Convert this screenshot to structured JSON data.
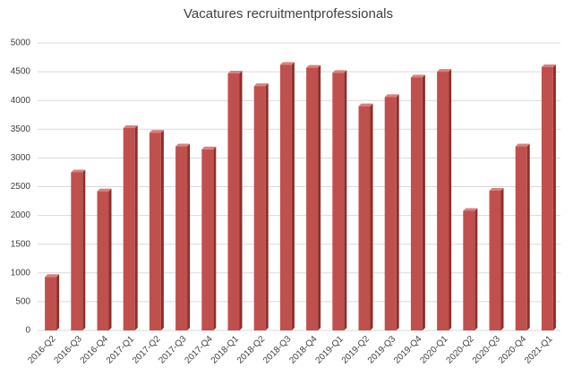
{
  "chart_data": {
    "type": "bar",
    "title": "Vacatures recruitmentprofessionals",
    "categories": [
      "2016-Q2",
      "2016-Q3",
      "2016-Q4",
      "2017-Q1",
      "2017-Q2",
      "2017-Q3",
      "2017-Q4",
      "2018-Q1",
      "2018-Q2",
      "2018-Q3",
      "2018-Q4",
      "2019-Q1",
      "2019-Q2",
      "2019-Q3",
      "2019-Q4",
      "2020-Q1",
      "2020-Q2",
      "2020-Q3",
      "2020-Q4",
      "2021-Q1"
    ],
    "values": [
      930,
      2750,
      2420,
      3520,
      3440,
      3200,
      3150,
      4470,
      4250,
      4620,
      4570,
      4480,
      3900,
      4060,
      4400,
      4500,
      2080,
      2430,
      3200,
      4580
    ],
    "color": "#c0504d",
    "ylim": [
      0,
      5000
    ],
    "yticks": [
      0,
      500,
      1000,
      1500,
      2000,
      2500,
      3000,
      3500,
      4000,
      4500,
      5000
    ],
    "grid": true
  }
}
